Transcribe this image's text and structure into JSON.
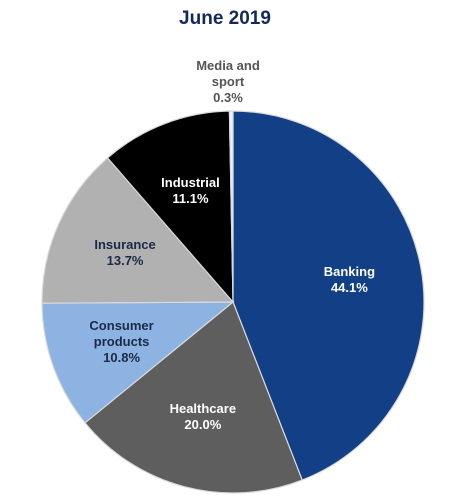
{
  "chart_data": {
    "type": "pie",
    "title": "June 2019",
    "categories": [
      "Banking",
      "Healthcare",
      "Consumer products",
      "Insurance",
      "Industrial",
      "Media and sport"
    ],
    "values": [
      44.1,
      20.0,
      10.8,
      13.7,
      11.1,
      0.3
    ],
    "value_labels": [
      "44.1%",
      "20.0%",
      "10.8%",
      "13.7%",
      "11.1%",
      "0.3%"
    ],
    "colors": [
      "#123f86",
      "#5e5e5e",
      "#8db3e2",
      "#b1b1b1",
      "#000000",
      "#f2f2f2"
    ]
  }
}
